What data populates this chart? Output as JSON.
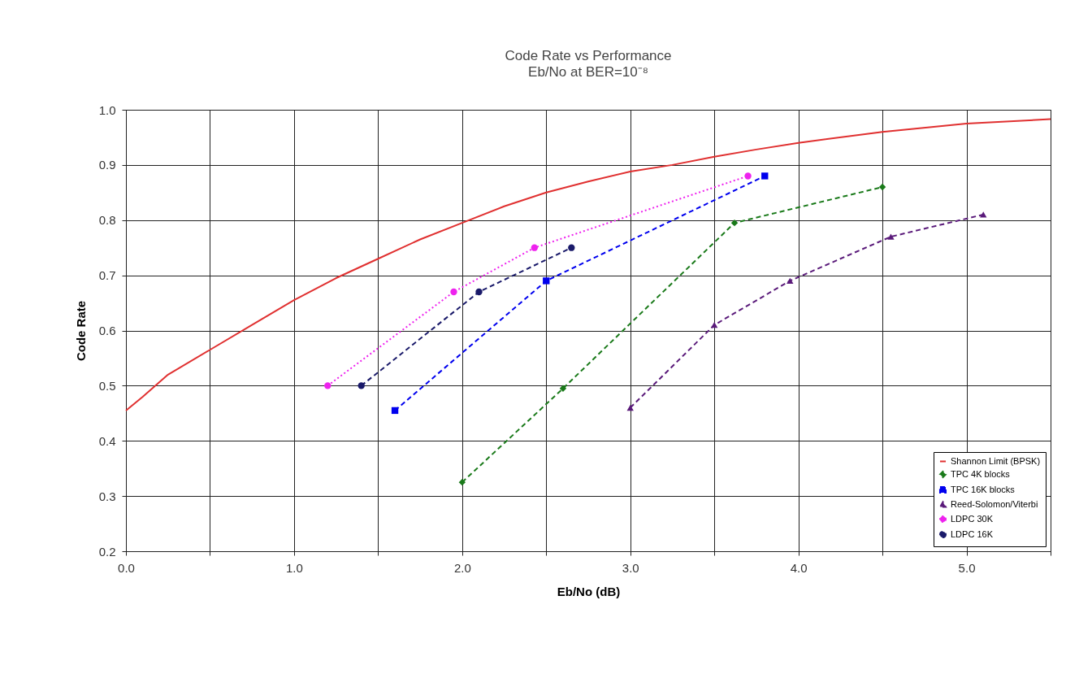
{
  "chart_data": {
    "type": "line",
    "title": "Code Rate vs Performance",
    "subtitle": "Eb/No at BER=10⁻⁸",
    "xlabel": "Eb/No (dB)",
    "ylabel": "Code Rate",
    "xlim": [
      0,
      5.5
    ],
    "ylim": [
      0.2,
      1.0
    ],
    "xticks": [
      {
        "value": 0,
        "label": "0.0"
      },
      {
        "value": 0.5,
        "label": null
      },
      {
        "value": 1,
        "label": "1.0"
      },
      {
        "value": 1.5,
        "label": null
      },
      {
        "value": 2,
        "label": "2.0"
      },
      {
        "value": 2.5,
        "label": null
      },
      {
        "value": 3,
        "label": "3.0"
      },
      {
        "value": 3.5,
        "label": null
      },
      {
        "value": 4,
        "label": "4.0"
      },
      {
        "value": 4.5,
        "label": null
      },
      {
        "value": 5,
        "label": "5.0"
      },
      {
        "value": 5.5,
        "label": null
      }
    ],
    "yticks": [
      0.2,
      0.3,
      0.4,
      0.5,
      0.6,
      0.7,
      0.8,
      0.9,
      {
        "value": 1,
        "label": "1.0"
      }
    ],
    "grid": true,
    "legend": "bottom right",
    "series": [
      {
        "name": "Shannon Limit (BPSK)",
        "color": "#e03030",
        "line_style": "solid",
        "marker": "none",
        "x": [
          0,
          0.1,
          0.25,
          0.5,
          0.75,
          1.0,
          1.25,
          1.5,
          1.75,
          2.0,
          2.25,
          2.5,
          2.75,
          3.0,
          3.25,
          3.5,
          3.75,
          4.0,
          4.5,
          5.0,
          5.5
        ],
        "values": [
          0.455,
          0.48,
          0.52,
          0.565,
          0.61,
          0.655,
          0.695,
          0.73,
          0.765,
          0.795,
          0.825,
          0.85,
          0.87,
          0.888,
          0.9,
          0.915,
          0.928,
          0.94,
          0.96,
          0.975,
          0.983
        ]
      },
      {
        "name": "TPC 4K blocks",
        "color": "#1a7a1a",
        "line_style": "dashed",
        "marker": "diamond",
        "x": [
          2.0,
          2.6,
          3.62,
          4.5
        ],
        "values": [
          0.325,
          0.495,
          0.795,
          0.86
        ]
      },
      {
        "name": "TPC 16K blocks",
        "color": "#0000ee",
        "line_style": "dashed",
        "marker": "square",
        "x": [
          1.6,
          2.5,
          3.8
        ],
        "values": [
          0.455,
          0.69,
          0.88
        ]
      },
      {
        "name": "Reed-Solomon/Viterbi",
        "color": "#5a1a7a",
        "line_style": "dashed",
        "marker": "triangle",
        "x": [
          3.0,
          3.5,
          3.95,
          4.55,
          5.1
        ],
        "values": [
          0.46,
          0.61,
          0.69,
          0.77,
          0.81
        ]
      },
      {
        "name": "LDPC 30K",
        "color": "#ee22ee",
        "line_style": "dotted",
        "marker": "circle",
        "x": [
          1.2,
          1.95,
          2.43,
          3.7
        ],
        "values": [
          0.5,
          0.67,
          0.75,
          0.88
        ]
      },
      {
        "name": "LDPC 16K",
        "color": "#1a1a6a",
        "line_style": "dashed",
        "marker": "circle",
        "x": [
          1.4,
          2.1,
          2.65
        ],
        "values": [
          0.5,
          0.67,
          0.75
        ]
      }
    ]
  }
}
